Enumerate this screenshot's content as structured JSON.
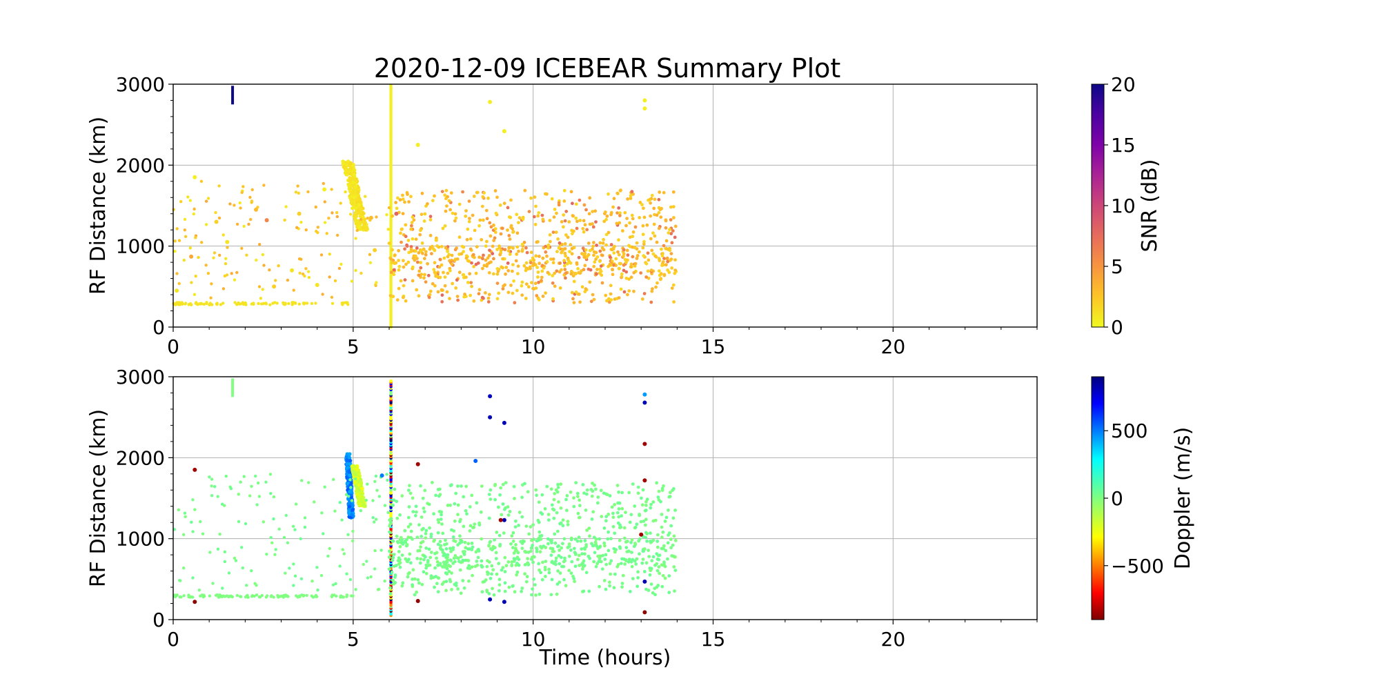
{
  "chart_data": [
    {
      "type": "scatter",
      "title": "2020-12-09 ICEBEAR Summary Plot",
      "xlabel": "",
      "ylabel": "RF Distance (km)",
      "xlim": [
        0,
        24
      ],
      "ylim": [
        0,
        3000
      ],
      "xticks": [
        "0",
        "5",
        "10",
        "15",
        "20"
      ],
      "yticks": [
        "0",
        "1000",
        "2000",
        "3000"
      ],
      "grid": true,
      "colorbar": {
        "label": "SNR (dB)",
        "range": [
          0,
          20
        ],
        "ticks": [
          "0",
          "5",
          "10",
          "15",
          "20"
        ],
        "colormap": "plasma_r"
      },
      "series": [
        {
          "features": [
            {
              "kind": "streak",
              "x": 1.65,
              "y": [
                2750,
                2980
              ],
              "c": 20
            },
            {
              "kind": "vertical_line",
              "x": 6.05,
              "y": [
                0,
                3000
              ],
              "c": 0.5
            },
            {
              "kind": "cluster",
              "x": [
                4.8,
                5.3
              ],
              "y": [
                1200,
                2050
              ],
              "c": 1
            },
            {
              "kind": "band",
              "x": [
                0,
                5
              ],
              "y": 290,
              "c": 1
            },
            {
              "kind": "field",
              "x": [
                6,
                14
              ],
              "y": [
                300,
                1700
              ],
              "c": [
                1,
                8
              ]
            }
          ],
          "x": [
            0.1,
            0.5,
            0.6,
            1.2,
            1.5,
            2.3,
            2.6,
            2.8,
            3.3,
            3.5,
            4.0,
            4.2,
            5.5,
            5.6,
            6.2,
            6.8,
            8.8,
            9.2,
            13.1,
            13.1
          ],
          "y": [
            450,
            870,
            1850,
            1300,
            1050,
            1450,
            1320,
            500,
            700,
            1400,
            520,
            1700,
            1350,
            950,
            1400,
            2250,
            2780,
            2420,
            2800,
            2700
          ],
          "c": [
            1,
            4,
            0.5,
            2,
            1,
            3,
            6,
            2,
            1,
            2,
            1,
            0.5,
            3,
            2,
            8,
            0.5,
            0.5,
            0.5,
            0.5,
            0.5
          ]
        }
      ]
    },
    {
      "type": "scatter",
      "title": "",
      "xlabel": "Time (hours)",
      "ylabel": "RF Distance (km)",
      "xlim": [
        0,
        24
      ],
      "ylim": [
        0,
        3000
      ],
      "xticks": [
        "0",
        "5",
        "10",
        "15",
        "20"
      ],
      "yticks": [
        "0",
        "1000",
        "2000",
        "3000"
      ],
      "grid": true,
      "colorbar": {
        "label": "Doppler (m/s)",
        "range": [
          -900,
          900
        ],
        "ticks": [
          "−500",
          "0",
          "500"
        ],
        "colormap": "jet_r"
      },
      "series": [
        {
          "features": [
            {
              "kind": "streak",
              "x": 1.65,
              "y": [
                2750,
                2980
              ],
              "c": 0
            },
            {
              "kind": "vertical_line",
              "x": 6.05,
              "y": [
                50,
                2950
              ],
              "c": "mixed"
            },
            {
              "kind": "cluster",
              "x": [
                4.8,
                5.0
              ],
              "y": [
                1250,
                2050
              ],
              "c": 500
            },
            {
              "kind": "cluster",
              "x": [
                5.0,
                5.3
              ],
              "y": [
                1400,
                1900
              ],
              "c": -200
            },
            {
              "kind": "band",
              "x": [
                0,
                5
              ],
              "y": 290,
              "c": 0
            },
            {
              "kind": "field",
              "x": [
                6,
                14
              ],
              "y": [
                300,
                1700
              ],
              "c": 20
            }
          ],
          "x": [
            0.6,
            0.6,
            6.8,
            6.8,
            8.8,
            8.8,
            8.8,
            9.2,
            9.2,
            9.2,
            13.1,
            13.1,
            13.1,
            13.1,
            13.1,
            13.1,
            8.4,
            5.8,
            9.1,
            13.0
          ],
          "y": [
            1850,
            220,
            1920,
            230,
            2760,
            2500,
            250,
            2430,
            220,
            1230,
            2780,
            2680,
            2170,
            1720,
            470,
            90,
            1960,
            1780,
            1230,
            1050
          ],
          "c": [
            -850,
            -880,
            -850,
            -870,
            800,
            820,
            820,
            820,
            820,
            820,
            450,
            820,
            -850,
            -850,
            820,
            -880,
            550,
            500,
            -850,
            -850
          ]
        }
      ]
    }
  ]
}
